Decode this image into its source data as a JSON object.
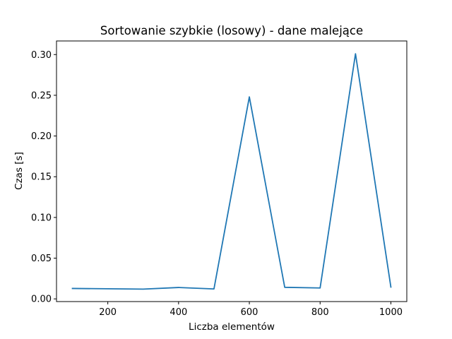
{
  "chart_data": {
    "type": "line",
    "title": "Sortowanie szybkie (losowy) - dane malejące",
    "xlabel": "Liczba elementów",
    "ylabel": "Czas [s]",
    "xlim": [
      55,
      1045
    ],
    "ylim": [
      -0.0033,
      0.3167
    ],
    "xticks": [
      200,
      400,
      600,
      800,
      1000
    ],
    "xtick_labels": [
      "200",
      "400",
      "600",
      "800",
      "1000"
    ],
    "yticks": [
      0.0,
      0.05,
      0.1,
      0.15,
      0.2,
      0.25,
      0.3
    ],
    "ytick_labels": [
      "0.00",
      "0.05",
      "0.10",
      "0.15",
      "0.20",
      "0.25",
      "0.30"
    ],
    "grid": false,
    "series": [
      {
        "name": "Sortowanie szybkie (losowy)",
        "color": "#1f77b4",
        "x": [
          100,
          200,
          300,
          400,
          500,
          600,
          700,
          800,
          900,
          1000
        ],
        "y": [
          0.0128,
          0.0124,
          0.012,
          0.014,
          0.0122,
          0.248,
          0.0142,
          0.0134,
          0.301,
          0.0145
        ]
      }
    ]
  }
}
